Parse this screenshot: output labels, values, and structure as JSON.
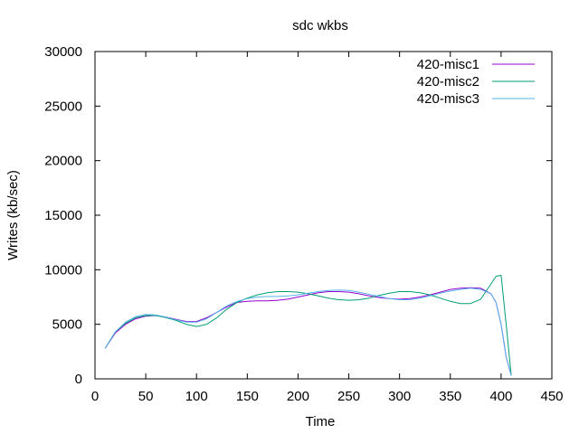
{
  "chart_data": {
    "type": "line",
    "title": "sdc wkbs",
    "xlabel": "Time",
    "ylabel": "Writes (kb/sec)",
    "xlim": [
      0,
      450
    ],
    "ylim": [
      0,
      30000
    ],
    "xticks": [
      0,
      50,
      100,
      150,
      200,
      250,
      300,
      350,
      400,
      450
    ],
    "yticks": [
      0,
      5000,
      10000,
      15000,
      20000,
      25000,
      30000
    ],
    "legend_position": "top-right",
    "grid": false,
    "series": [
      {
        "name": "420-misc1",
        "color": "#9400d3",
        "x": [
          10,
          20,
          30,
          40,
          50,
          60,
          70,
          80,
          90,
          100,
          110,
          120,
          130,
          140,
          150,
          160,
          170,
          180,
          190,
          200,
          210,
          220,
          230,
          240,
          250,
          260,
          270,
          280,
          290,
          300,
          310,
          320,
          330,
          340,
          350,
          360,
          370,
          380,
          390,
          395,
          400,
          405,
          410
        ],
        "y": [
          2800,
          4200,
          5000,
          5500,
          5750,
          5800,
          5650,
          5450,
          5250,
          5250,
          5600,
          6100,
          6600,
          7000,
          7100,
          7150,
          7150,
          7200,
          7300,
          7500,
          7700,
          7900,
          8000,
          8000,
          7950,
          7800,
          7600,
          7450,
          7350,
          7300,
          7350,
          7500,
          7700,
          7950,
          8200,
          8300,
          8350,
          8300,
          7800,
          7000,
          5000,
          2000,
          300
        ]
      },
      {
        "name": "420-misc2",
        "color": "#009e73",
        "x": [
          10,
          20,
          30,
          40,
          50,
          60,
          70,
          80,
          90,
          100,
          110,
          120,
          130,
          140,
          150,
          160,
          170,
          180,
          190,
          200,
          210,
          220,
          230,
          240,
          250,
          260,
          270,
          280,
          290,
          300,
          310,
          320,
          330,
          340,
          350,
          360,
          370,
          380,
          390,
          395,
          400,
          405,
          410
        ],
        "y": [
          2800,
          4300,
          5100,
          5600,
          5800,
          5800,
          5600,
          5350,
          5000,
          4800,
          5000,
          5600,
          6400,
          7000,
          7400,
          7700,
          7900,
          8000,
          8000,
          7950,
          7800,
          7600,
          7400,
          7250,
          7200,
          7250,
          7400,
          7650,
          7850,
          8000,
          8000,
          7900,
          7700,
          7400,
          7100,
          6900,
          6900,
          7300,
          8700,
          9400,
          9500,
          5000,
          300
        ]
      },
      {
        "name": "420-misc3",
        "color": "#56b4e9",
        "x": [
          10,
          20,
          30,
          40,
          50,
          60,
          70,
          80,
          90,
          100,
          110,
          120,
          130,
          140,
          150,
          160,
          170,
          180,
          190,
          200,
          210,
          220,
          230,
          240,
          250,
          260,
          270,
          280,
          290,
          300,
          310,
          320,
          330,
          340,
          350,
          360,
          370,
          380,
          390,
          395,
          400,
          405,
          410
        ],
        "y": [
          2800,
          4300,
          5200,
          5700,
          5900,
          5850,
          5650,
          5400,
          5200,
          5200,
          5500,
          6100,
          6700,
          7100,
          7350,
          7500,
          7550,
          7550,
          7600,
          7700,
          7850,
          8000,
          8100,
          8150,
          8100,
          7950,
          7750,
          7550,
          7350,
          7250,
          7250,
          7400,
          7600,
          7850,
          8050,
          8200,
          8300,
          8200,
          7800,
          7000,
          5000,
          2000,
          300
        ]
      }
    ]
  }
}
